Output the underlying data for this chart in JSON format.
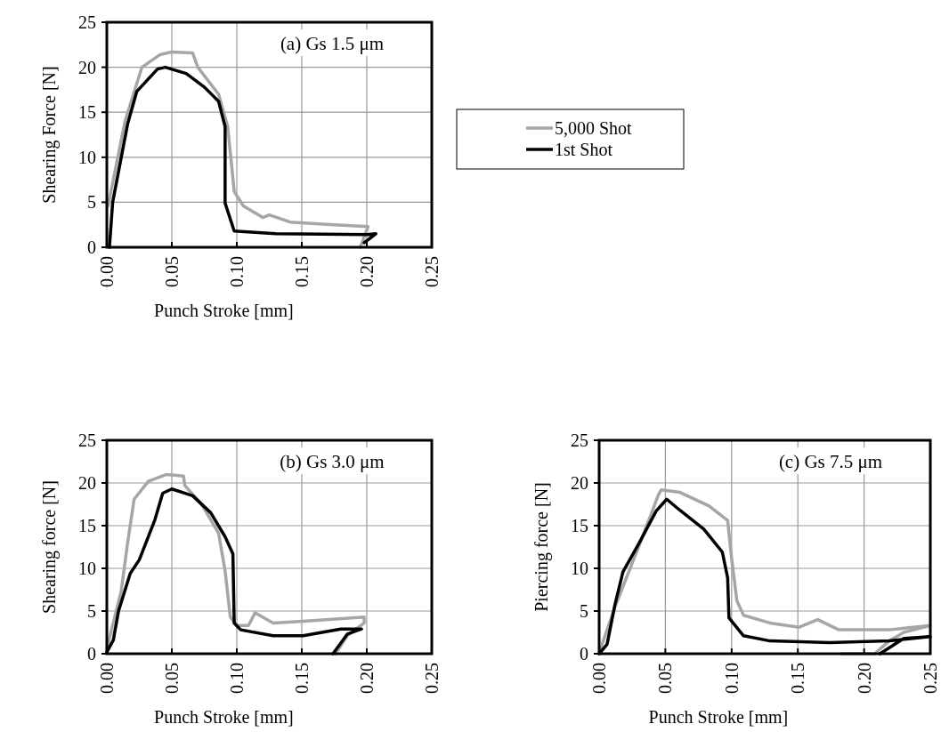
{
  "chart_data": [
    {
      "type": "line",
      "xlabel": "Punch Stroke [mm]",
      "ylabel": "Shearing Force [N]",
      "annotations": [
        "(a) Gs 1.5 μm"
      ],
      "xlim": [
        0,
        0.25
      ],
      "xticks": [
        {
          "value": 0,
          "label": "0.00"
        },
        {
          "value": 0.05,
          "label": "0.05"
        },
        {
          "value": 0.1,
          "label": "0.10"
        },
        {
          "value": 0.15,
          "label": "0.15"
        },
        {
          "value": 0.2,
          "label": "0.20"
        },
        {
          "value": 0.25,
          "label": "0.25"
        }
      ],
      "ylim": [
        0,
        25
      ],
      "yticks": [
        0,
        5,
        10,
        15,
        20,
        25
      ],
      "grid": true,
      "legend": "right",
      "line_style": "solid",
      "series": [
        {
          "name": "5,000 Shot",
          "color": "#a6a6a6",
          "x": [
            0.001,
            0.014,
            0.027,
            0.041,
            0.05,
            0.066,
            0.07,
            0.086,
            0.093,
            0.098,
            0.105,
            0.12,
            0.125,
            0.141,
            0.175,
            0.201,
            0.195
          ],
          "values": [
            4.6,
            14,
            20,
            21.4,
            21.7,
            21.6,
            20,
            17,
            13.4,
            6.2,
            4.6,
            3.3,
            3.6,
            2.8,
            2.5,
            2.3,
            0
          ]
        },
        {
          "name": "1st Shot",
          "color": "#000000",
          "x": [
            0.002,
            0.0045,
            0.016,
            0.023,
            0.039,
            0.045,
            0.061,
            0.075,
            0.086,
            0.091,
            0.091,
            0.098,
            0.13,
            0.2,
            0.207,
            0.198
          ],
          "values": [
            0,
            5,
            13.7,
            17.3,
            19.8,
            20,
            19.3,
            17.8,
            16.2,
            13.4,
            4.9,
            1.8,
            1.5,
            1.4,
            1.5,
            0.5
          ]
        }
      ]
    },
    {
      "type": "line",
      "xlabel": "Punch Stroke [mm]",
      "ylabel": "Shearing force [N]",
      "annotations": [
        "(b) Gs 3.0 μm"
      ],
      "xlim": [
        0,
        0.25
      ],
      "xticks": [
        {
          "value": 0,
          "label": "0.00"
        },
        {
          "value": 0.05,
          "label": "0.05"
        },
        {
          "value": 0.1,
          "label": "0.10"
        },
        {
          "value": 0.15,
          "label": "0.15"
        },
        {
          "value": 0.2,
          "label": "0.20"
        },
        {
          "value": 0.25,
          "label": "0.25"
        }
      ],
      "ylim": [
        0,
        25
      ],
      "yticks": [
        0,
        5,
        10,
        15,
        20,
        25
      ],
      "grid": true,
      "line_style": "solid",
      "series": [
        {
          "color": "#a6a6a6",
          "x": [
            0,
            0.011,
            0.016,
            0.021,
            0.032,
            0.046,
            0.059,
            0.06,
            0.073,
            0.086,
            0.091,
            0.095,
            0.1,
            0.109,
            0.114,
            0.128,
            0.151,
            0.198,
            0.198,
            0.185,
            0.176
          ],
          "values": [
            0.6,
            7.3,
            13,
            18.1,
            20.2,
            21,
            20.8,
            19.7,
            17.5,
            14.1,
            9.7,
            4.3,
            3.3,
            3.3,
            4.8,
            3.6,
            3.8,
            4.3,
            3.6,
            2.1,
            0
          ]
        },
        {
          "color": "#000000",
          "x": [
            0,
            0.005,
            0.009,
            0.018,
            0.025,
            0.037,
            0.043,
            0.05,
            0.066,
            0.08,
            0.091,
            0.097,
            0.098,
            0.103,
            0.128,
            0.151,
            0.18,
            0.196,
            0.185,
            0.174
          ],
          "values": [
            0.2,
            1.6,
            5,
            9.4,
            11,
            15.7,
            18.8,
            19.3,
            18.5,
            16.5,
            13.7,
            11.7,
            3.6,
            2.8,
            2.1,
            2.1,
            2.9,
            2.9,
            2.3,
            0
          ]
        }
      ]
    },
    {
      "type": "line",
      "xlabel": "Punch Stroke [mm]",
      "ylabel": "Piercing force [N]",
      "annotations": [
        "(c) Gs 7.5 μm"
      ],
      "xlim": [
        0,
        0.25
      ],
      "xticks": [
        {
          "value": 0,
          "label": "0.00"
        },
        {
          "value": 0.05,
          "label": "0.05"
        },
        {
          "value": 0.1,
          "label": "0.10"
        },
        {
          "value": 0.15,
          "label": "0.15"
        },
        {
          "value": 0.2,
          "label": "0.20"
        },
        {
          "value": 0.25,
          "label": "0.25"
        }
      ],
      "ylim": [
        0,
        25
      ],
      "yticks": [
        0,
        5,
        10,
        15,
        20,
        25
      ],
      "grid": true,
      "line_style": "solid",
      "series": [
        {
          "color": "#a6a6a6",
          "x": [
            0,
            0.012,
            0.03,
            0.045,
            0.047,
            0.061,
            0.083,
            0.097,
            0.1,
            0.104,
            0.109,
            0.129,
            0.151,
            0.165,
            0.181,
            0.219,
            0.25,
            0.23,
            0.219,
            0.208,
            0.183
          ],
          "values": [
            0.1,
            5.5,
            12.6,
            18.7,
            19.2,
            18.9,
            17.3,
            15.6,
            11.2,
            6.2,
            4.5,
            3.6,
            3.1,
            4,
            2.8,
            2.8,
            3.3,
            2.5,
            1.5,
            0,
            0
          ]
        },
        {
          "color": "#000000",
          "x": [
            0,
            0.006,
            0.012,
            0.018,
            0.03,
            0.043,
            0.051,
            0.061,
            0.079,
            0.093,
            0.097,
            0.098,
            0.109,
            0.129,
            0.174,
            0.219,
            0.25,
            0.23,
            0.212
          ],
          "values": [
            0,
            1.1,
            5.8,
            9.6,
            12.9,
            16.7,
            18.1,
            16.8,
            14.6,
            11.9,
            8.9,
            4.2,
            2.1,
            1.5,
            1.3,
            1.5,
            2,
            1.8,
            0
          ]
        }
      ]
    }
  ]
}
